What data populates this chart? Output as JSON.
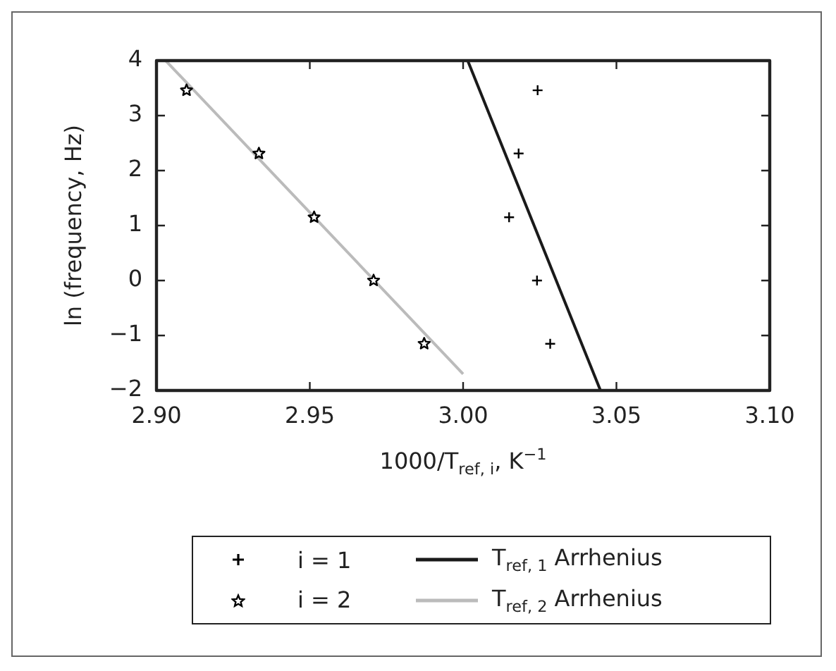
{
  "chart_data": {
    "type": "scatter",
    "xlabel": "1000/T$_{ref, i}$, K$^{−1}$",
    "ylabel": "ln (frequency, Hz)",
    "xlim": [
      2.9,
      3.1
    ],
    "xticks": [
      {
        "value": 2.9,
        "label": "2.90"
      },
      {
        "value": 2.95,
        "label": "2.95"
      },
      {
        "value": 3.0,
        "label": "3.00"
      },
      {
        "value": 3.05,
        "label": "3.05"
      },
      {
        "value": 3.1,
        "label": "3.10"
      }
    ],
    "ylim": [
      -2,
      4
    ],
    "yticks": [
      {
        "value": -2,
        "label": "−2"
      },
      {
        "value": -1,
        "label": "−1"
      },
      0,
      1,
      2,
      3,
      4
    ],
    "legend": "bottom",
    "series": [
      {
        "name": "i = 1",
        "type": "scatter",
        "marker": "cross",
        "color": "#000000",
        "x": [
          3.0243,
          3.0181,
          3.015,
          3.0241,
          3.0284
        ],
        "values": [
          3.46,
          2.31,
          1.15,
          0.0,
          -1.15
        ]
      },
      {
        "name": "i = 2",
        "type": "scatter",
        "marker": "star",
        "color": "#000000",
        "x": [
          2.9098,
          2.9334,
          2.9514,
          2.9708,
          2.9873
        ],
        "values": [
          3.46,
          2.31,
          1.15,
          0.0,
          -1.15
        ]
      },
      {
        "name": "T$_{ref, 1}$ Arrhenius",
        "type": "line",
        "marker": "none",
        "color": "#1a1a1a",
        "x": [
          3.0015,
          3.0448
        ],
        "values": [
          4,
          -2
        ]
      },
      {
        "name": "T$_{ref, 2}$ Arrhenius",
        "type": "line",
        "marker": "none",
        "color": "#bbbbbb",
        "x": [
          2.903,
          3.0
        ],
        "values": [
          4,
          -1.7
        ]
      }
    ]
  }
}
